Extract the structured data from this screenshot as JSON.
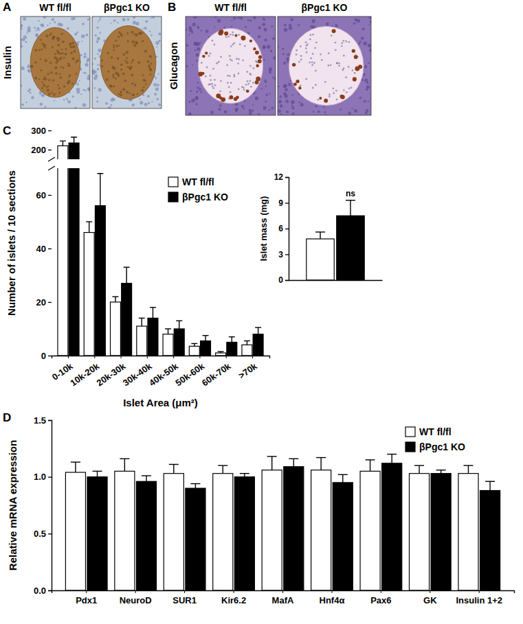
{
  "panels": [
    {
      "label": "A",
      "stain": "Insulin",
      "columns": [
        "WT fl/fl",
        "βPgc1 KO"
      ]
    },
    {
      "label": "B",
      "stain": "Glucagon",
      "columns": [
        "WT fl/fl",
        "βPgc1 KO"
      ]
    }
  ],
  "chart_data": [
    {
      "type": "bar",
      "panel_label": "C",
      "y_label": "Number of islets / 10 sections",
      "x_label": "Islet Area (μm²)",
      "categories": [
        "0-10k",
        "10k-20k",
        "20k-30k",
        "30k-40k",
        "40k-50k",
        "50k-60k",
        "60k-70k",
        ">70k"
      ],
      "series": [
        {
          "name": "WT fl/fl",
          "color": "#ffffff",
          "values": [
            220,
            46,
            20,
            11,
            8,
            3.5,
            1,
            4
          ],
          "errors": [
            25,
            4,
            2,
            3,
            2,
            1,
            0.5,
            1.5
          ]
        },
        {
          "name": "βPgc1 KO",
          "color": "#000000",
          "values": [
            235,
            56,
            27,
            14,
            10,
            5.5,
            5,
            8
          ],
          "errors": [
            30,
            12,
            6,
            4,
            3,
            2,
            2,
            2.5
          ]
        }
      ],
      "ylim": [
        0,
        300
      ],
      "ybreak": [
        70,
        150
      ],
      "yticks": [
        0,
        20,
        40,
        60,
        200,
        300
      ],
      "legend": "top",
      "grid": false
    },
    {
      "type": "bar",
      "panel_label": "D",
      "y_label": "Relative mRNA expression",
      "categories": [
        "Pdx1",
        "NeuroD",
        "SUR1",
        "Kir6.2",
        "MafA",
        "Hnf4α",
        "Pax6",
        "GK",
        "Insulin 1+2"
      ],
      "series": [
        {
          "name": "WT fl/fl",
          "color": "#ffffff",
          "values": [
            1.04,
            1.05,
            1.03,
            1.03,
            1.06,
            1.06,
            1.05,
            1.03,
            1.03
          ],
          "errors": [
            0.09,
            0.11,
            0.08,
            0.07,
            0.12,
            0.11,
            0.1,
            0.07,
            0.07
          ]
        },
        {
          "name": "βPgc1 KO",
          "color": "#000000",
          "values": [
            1.0,
            0.96,
            0.9,
            1.0,
            1.09,
            0.95,
            1.12,
            1.03,
            0.88
          ],
          "errors": [
            0.05,
            0.05,
            0.04,
            0.03,
            0.07,
            0.07,
            0.08,
            0.03,
            0.08
          ]
        }
      ],
      "ylim": [
        0,
        1.5
      ],
      "yticks": [
        {
          "value": 0,
          "label": "0.0"
        },
        {
          "value": 0.5,
          "label": "0.5"
        },
        {
          "value": 1,
          "label": "1.0"
        },
        {
          "value": 1.5,
          "label": "1.5"
        }
      ],
      "legend": "top-right",
      "grid": false
    },
    {
      "type": "bar",
      "y_label": "Islet mass (mg)",
      "categories": [
        null
      ],
      "series": [
        {
          "name": "WT fl/fl",
          "color": "#ffffff",
          "values": [
            4.8
          ],
          "errors": [
            0.8
          ]
        },
        {
          "name": "βPgc1 KO",
          "color": "#000000",
          "values": [
            7.5
          ],
          "errors": [
            1.8
          ]
        }
      ],
      "ylim": [
        0,
        12
      ],
      "yticks": [
        0,
        3,
        6,
        9,
        12
      ],
      "annotations": [
        "ns"
      ],
      "grid": false
    }
  ]
}
